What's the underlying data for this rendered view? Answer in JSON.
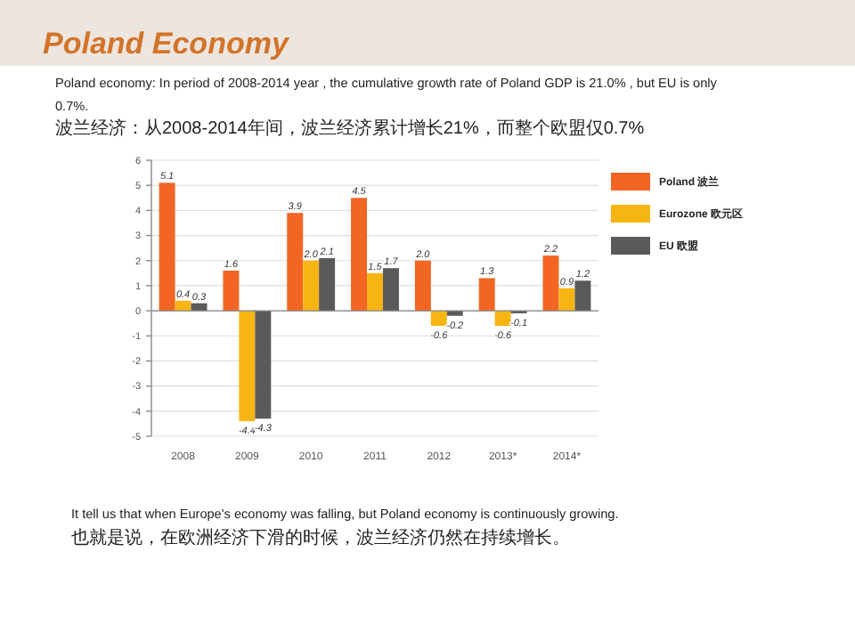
{
  "chart_data": {
    "type": "bar",
    "title": "Poland Economy",
    "subtitle": "Poland economy: In period of 2008-2014  year , the  cumulative  growth rate of Poland  GDP is 21.0% , but  EU is only  0.7%.",
    "annotations": [
      "波兰经济：从2008-2014年间，波兰经济累计增长21%，而整个欧盟仅0.7%",
      "It tell us that when  Europe's economy  was falling, but  Poland  economy  is continuously  growing.",
      "也就是说，在欧洲经济下滑的时候，波兰经济仍然在持续增长。"
    ],
    "categories": [
      "2008",
      "2009",
      "2010",
      "2011",
      "2012",
      "2013*",
      "2014*"
    ],
    "series": [
      {
        "name": "Poland 波兰",
        "color": "#f26522",
        "values": [
          5.1,
          1.6,
          3.9,
          4.5,
          2.0,
          1.3,
          2.2
        ],
        "value_labels": [
          "5.1",
          "1.6",
          "3.9",
          "4.5",
          "2.0",
          "1.3",
          "2.2"
        ]
      },
      {
        "name": "Eurozone 欧元区",
        "color": "#f7b512",
        "values": [
          0.4,
          -4.4,
          2.0,
          1.5,
          -0.6,
          -0.6,
          0.9
        ],
        "value_labels": [
          "0.4",
          "-4.4",
          "2.0",
          "1.5",
          "-0.6",
          "-0.6",
          "0.9"
        ]
      },
      {
        "name": "EU 欧盟",
        "color": "#5a5a5a",
        "values": [
          0.3,
          -4.3,
          2.1,
          1.7,
          -0.2,
          -0.1,
          1.2
        ],
        "value_labels": [
          "0.3",
          "-4.3",
          "2.1",
          "1.7",
          "-0.2",
          "-0.1",
          "1.2"
        ]
      }
    ],
    "ylim": [
      -5,
      6
    ],
    "yticks": [
      -5,
      -4,
      -3,
      -2,
      -1,
      0,
      1,
      2,
      3,
      4,
      5,
      6
    ],
    "grid": "y",
    "legend": "right"
  }
}
